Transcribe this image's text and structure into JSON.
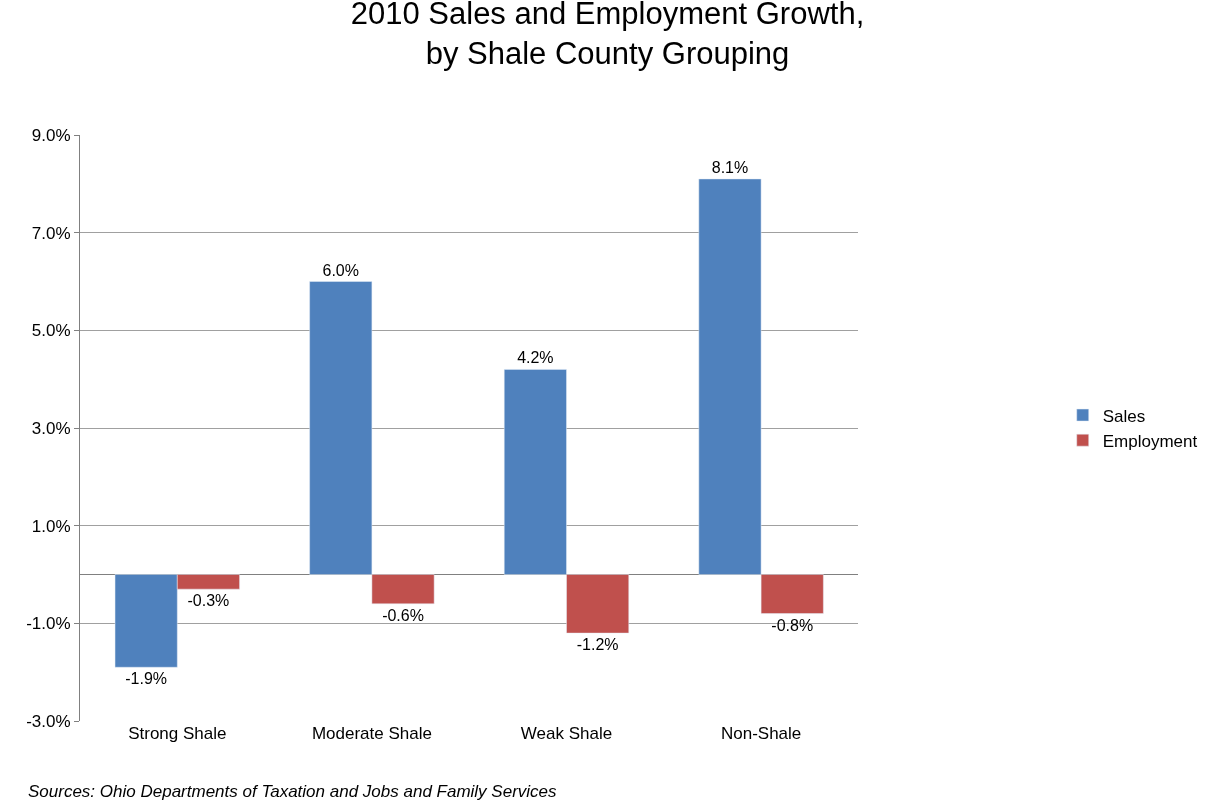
{
  "chart_data": {
    "type": "bar",
    "title": "2010 Sales and Employment Growth,\nby Shale County Grouping",
    "categories": [
      "Strong Shale",
      "Moderate Shale",
      "Weak Shale",
      "Non-Shale"
    ],
    "series": [
      {
        "name": "Sales",
        "color": "#4f81bd",
        "values": [
          -1.9,
          6.0,
          4.2,
          8.1
        ],
        "value_labels": [
          "-1.9%",
          "6.0%",
          "4.2%",
          "8.1%"
        ]
      },
      {
        "name": "Employment",
        "color": "#c0504d",
        "values": [
          -0.3,
          -0.6,
          -1.2,
          -0.8
        ],
        "value_labels": [
          "-0.3%",
          "-0.6%",
          "-1.2%",
          "-0.8%"
        ]
      }
    ],
    "ylim": [
      -3,
      9
    ],
    "yticks": [
      {
        "value": -3,
        "label": "-3.0%"
      },
      {
        "value": -1,
        "label": "-1.0%"
      },
      {
        "value": 1,
        "label": "1.0%"
      },
      {
        "value": 3,
        "label": "3.0%"
      },
      {
        "value": 5,
        "label": "5.0%"
      },
      {
        "value": 7,
        "label": "7.0%"
      },
      {
        "value": 9,
        "label": "9.0%"
      }
    ],
    "grid": "y",
    "legend": "right",
    "annotations": [
      "Sources: Ohio Departments of Taxation and Jobs and Family Services"
    ]
  }
}
